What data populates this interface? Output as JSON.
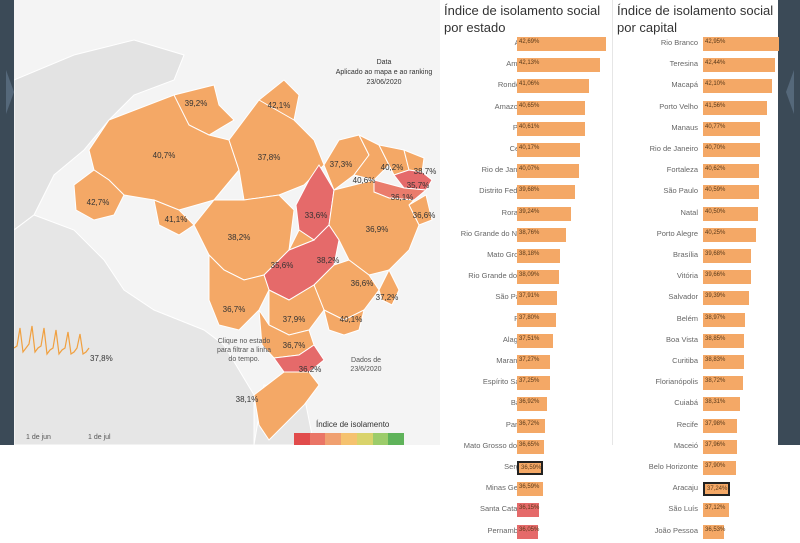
{
  "map": {
    "date_title": "Data",
    "date_subtitle": "Aplicado ao mapa e ao ranking",
    "date_value": "23/06/2020",
    "hint_text": "Clique no estado para filtrar a linha do tempo.",
    "dados_text": "Dados de 23/6/2020",
    "timeline_value": "37,8%",
    "x_ticks": [
      "1 de jun",
      "1 de jul"
    ],
    "legend_title": "Índice de isolamento",
    "legend_colors": [
      "#e14b4b",
      "#ea7566",
      "#f0a070",
      "#f5c26f",
      "#d9d36b",
      "#9ccc6a",
      "#5fb35a"
    ],
    "states": [
      {
        "label": "39,2%",
        "color": "#f4a866"
      },
      {
        "label": "42,1%",
        "color": "#f4a866"
      },
      {
        "label": "40,7%",
        "color": "#f4a866"
      },
      {
        "label": "42,7%",
        "color": "#f4a866"
      },
      {
        "label": "37,8%",
        "color": "#f4a866"
      },
      {
        "label": "41,1%",
        "color": "#f4a866"
      },
      {
        "label": "38,2%",
        "color": "#f4a866"
      },
      {
        "label": "33,6%",
        "color": "#e56a6a"
      },
      {
        "label": "37,3%",
        "color": "#f4a866"
      },
      {
        "label": "40,6%",
        "color": "#f4a866"
      },
      {
        "label": "40,2%",
        "color": "#f4a866"
      },
      {
        "label": "38,7%",
        "color": "#f4a866"
      },
      {
        "label": "35,7%",
        "color": "#e56a6a"
      },
      {
        "label": "36,1%",
        "color": "#ea7c6c"
      },
      {
        "label": "36,6%",
        "color": "#f4a866"
      },
      {
        "label": "36,9%",
        "color": "#f4a866"
      },
      {
        "label": "35,6%",
        "color": "#e56a6a"
      },
      {
        "label": "38,2%",
        "color": "#f4a866"
      },
      {
        "label": "36,6%",
        "color": "#f4a866"
      },
      {
        "label": "37,2%",
        "color": "#f4a866"
      },
      {
        "label": "36,7%",
        "color": "#f4a866"
      },
      {
        "label": "37,9%",
        "color": "#f4a866"
      },
      {
        "label": "40,1%",
        "color": "#f4a866"
      },
      {
        "label": "36,7%",
        "color": "#f4a866"
      },
      {
        "label": "36,2%",
        "color": "#e56a6a"
      },
      {
        "label": "38,1%",
        "color": "#f4a866"
      }
    ]
  },
  "ranking_estado": {
    "title": "Índice de isolamento social por estado",
    "rows": [
      {
        "name": "Acre",
        "value": "42,69%",
        "pct": 42.69
      },
      {
        "name": "Amapá",
        "value": "42,13%",
        "pct": 42.13
      },
      {
        "name": "Rondônia",
        "value": "41,06%",
        "pct": 41.06
      },
      {
        "name": "Amazonas",
        "value": "40,65%",
        "pct": 40.65
      },
      {
        "name": "Piauí",
        "value": "40,61%",
        "pct": 40.61
      },
      {
        "name": "Ceará",
        "value": "40,17%",
        "pct": 40.17
      },
      {
        "name": "Rio de Janeiro",
        "value": "40,07%",
        "pct": 40.07
      },
      {
        "name": "Distrito Federal",
        "value": "39,68%",
        "pct": 39.68
      },
      {
        "name": "Roraima",
        "value": "39,24%",
        "pct": 39.24
      },
      {
        "name": "Rio Grande do Norte",
        "value": "38,76%",
        "pct": 38.76
      },
      {
        "name": "Mato Grosso",
        "value": "38,18%",
        "pct": 38.18
      },
      {
        "name": "Rio Grande do Sul",
        "value": "38,09%",
        "pct": 38.09
      },
      {
        "name": "São Paulo",
        "value": "37,91%",
        "pct": 37.91
      },
      {
        "name": "Pará",
        "value": "37,80%",
        "pct": 37.8
      },
      {
        "name": "Alagoas",
        "value": "37,51%",
        "pct": 37.51
      },
      {
        "name": "Maranhão",
        "value": "37,27%",
        "pct": 37.27
      },
      {
        "name": "Espírito Santo",
        "value": "37,25%",
        "pct": 37.25
      },
      {
        "name": "Bahia",
        "value": "36,92%",
        "pct": 36.92
      },
      {
        "name": "Paraná",
        "value": "36,72%",
        "pct": 36.72
      },
      {
        "name": "Mato Grosso do Sul",
        "value": "36,65%",
        "pct": 36.65
      },
      {
        "name": "Sergipe",
        "value": "36,59%",
        "pct": 36.59,
        "highlight": true
      },
      {
        "name": "Minas Gerais",
        "value": "36,59%",
        "pct": 36.59
      },
      {
        "name": "Santa Catarina",
        "value": "36,15%",
        "pct": 36.15,
        "red": true
      },
      {
        "name": "Pernambuco",
        "value": "36,05%",
        "pct": 36.05,
        "red": true
      }
    ]
  },
  "ranking_capital": {
    "title": "Índice de isolamento social por capital",
    "rows": [
      {
        "name": "Rio Branco",
        "value": "42,95%",
        "pct": 42.95
      },
      {
        "name": "Teresina",
        "value": "42,44%",
        "pct": 42.44
      },
      {
        "name": "Macapá",
        "value": "42,10%",
        "pct": 42.1
      },
      {
        "name": "Porto Velho",
        "value": "41,56%",
        "pct": 41.56
      },
      {
        "name": "Manaus",
        "value": "40,77%",
        "pct": 40.77
      },
      {
        "name": "Rio de Janeiro",
        "value": "40,70%",
        "pct": 40.7
      },
      {
        "name": "Fortaleza",
        "value": "40,62%",
        "pct": 40.62
      },
      {
        "name": "São Paulo",
        "value": "40,59%",
        "pct": 40.59
      },
      {
        "name": "Natal",
        "value": "40,50%",
        "pct": 40.5
      },
      {
        "name": "Porto Alegre",
        "value": "40,25%",
        "pct": 40.25
      },
      {
        "name": "Brasília",
        "value": "39,68%",
        "pct": 39.68
      },
      {
        "name": "Vitória",
        "value": "39,66%",
        "pct": 39.66
      },
      {
        "name": "Salvador",
        "value": "39,39%",
        "pct": 39.39
      },
      {
        "name": "Belém",
        "value": "38,97%",
        "pct": 38.97
      },
      {
        "name": "Boa Vista",
        "value": "38,85%",
        "pct": 38.85
      },
      {
        "name": "Curitiba",
        "value": "38,83%",
        "pct": 38.83
      },
      {
        "name": "Florianópolis",
        "value": "38,72%",
        "pct": 38.72
      },
      {
        "name": "Cuiabá",
        "value": "38,31%",
        "pct": 38.31
      },
      {
        "name": "Recife",
        "value": "37,98%",
        "pct": 37.98
      },
      {
        "name": "Maceió",
        "value": "37,96%",
        "pct": 37.96
      },
      {
        "name": "Belo Horizonte",
        "value": "37,90%",
        "pct": 37.9
      },
      {
        "name": "Aracaju",
        "value": "37,24%",
        "pct": 37.24,
        "highlight": true
      },
      {
        "name": "São Luís",
        "value": "37,12%",
        "pct": 37.12
      },
      {
        "name": "João Pessoa",
        "value": "36,53%",
        "pct": 36.53
      }
    ]
  }
}
